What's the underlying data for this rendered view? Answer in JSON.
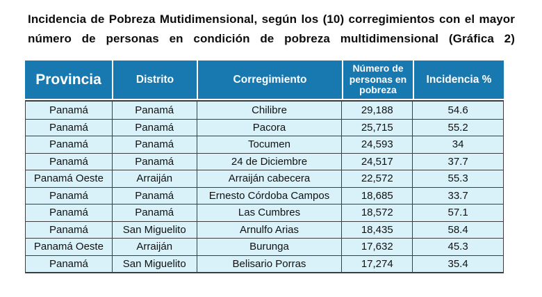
{
  "title": "Incidencia de Pobreza Mutidimensional, según los (10) corregimientos con el mayor número de personas en condición de pobreza multidimensional (Gráfica 2)",
  "colors": {
    "header_bg": "#1878b0",
    "header_text": "#ffffff",
    "row_bg": "#d9f2fa",
    "border": "#3c3c3c",
    "title_text": "#0d0d0d"
  },
  "table": {
    "headers": [
      "Provincia",
      "Distrito",
      "Corregimiento",
      "Número de personas en pobreza",
      "Incidencia %"
    ],
    "rows": [
      [
        "Panamá",
        "Panamá",
        "Chilibre",
        "29,188",
        "54.6"
      ],
      [
        "Panamá",
        "Panamá",
        "Pacora",
        "25,715",
        "55.2"
      ],
      [
        "Panamá",
        "Panamá",
        "Tocumen",
        "24,593",
        "34"
      ],
      [
        "Panamá",
        "Panamá",
        "24 de Diciembre",
        "24,517",
        "37.7"
      ],
      [
        "Panamá Oeste",
        "Arraiján",
        "Arraiján cabecera",
        "22,572",
        "55.3"
      ],
      [
        "Panamá",
        "Panamá",
        "Ernesto Córdoba Campos",
        "18,685",
        "33.7"
      ],
      [
        "Panamá",
        "Panamá",
        "Las Cumbres",
        "18,572",
        "57.1"
      ],
      [
        "Panamá",
        "San Miguelito",
        "Arnulfo Arias",
        "18,435",
        "58.4"
      ],
      [
        "Panamá Oeste",
        "Arraiján",
        "Burunga",
        "17,632",
        "45.3"
      ],
      [
        "Panamá",
        "San Miguelito",
        "Belisario Porras",
        "17,274",
        "35.4"
      ]
    ]
  }
}
